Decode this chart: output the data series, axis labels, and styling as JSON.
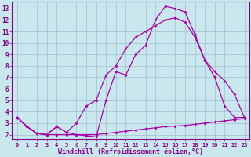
{
  "bg_color": "#c8e8ee",
  "grid_color": "#a0bece",
  "line_color": "#aa00aa",
  "xlabel": "Windchill (Refroidissement éolien,°C)",
  "xlim_min": -0.5,
  "xlim_max": 23.5,
  "ylim_min": 1.6,
  "ylim_max": 13.6,
  "xticks": [
    0,
    1,
    2,
    3,
    4,
    5,
    6,
    7,
    8,
    9,
    10,
    11,
    12,
    13,
    14,
    15,
    16,
    17,
    18,
    19,
    20,
    21,
    22,
    23
  ],
  "yticks": [
    2,
    3,
    4,
    5,
    6,
    7,
    8,
    9,
    10,
    11,
    12,
    13
  ],
  "line1_x": [
    0,
    1,
    2,
    3,
    4,
    5,
    6,
    7,
    8,
    9,
    10,
    11,
    12,
    13,
    14,
    15,
    16,
    17,
    18,
    19,
    20,
    21,
    22,
    23
  ],
  "line1_y": [
    3.5,
    2.7,
    2.1,
    2.0,
    2.0,
    2.0,
    2.0,
    2.0,
    2.0,
    2.1,
    2.2,
    2.3,
    2.4,
    2.5,
    2.6,
    2.7,
    2.75,
    2.8,
    2.9,
    3.0,
    3.1,
    3.2,
    3.3,
    3.4
  ],
  "line2_x": [
    0,
    1,
    2,
    3,
    4,
    5,
    6,
    7,
    8,
    9,
    10,
    11,
    12,
    13,
    14,
    15,
    16,
    17,
    18,
    19,
    20,
    21,
    22,
    23
  ],
  "line2_y": [
    3.5,
    2.7,
    2.1,
    2.0,
    2.7,
    2.2,
    3.0,
    4.5,
    5.0,
    7.2,
    8.0,
    9.5,
    10.5,
    11.0,
    11.5,
    12.0,
    12.2,
    11.8,
    10.5,
    8.5,
    7.5,
    6.7,
    5.5,
    3.5
  ],
  "line3_x": [
    0,
    1,
    2,
    3,
    4,
    5,
    6,
    7,
    8,
    9,
    10,
    11,
    12,
    13,
    14,
    15,
    16,
    17,
    18,
    19,
    20,
    21,
    22,
    23
  ],
  "line3_y": [
    3.5,
    2.7,
    2.1,
    2.0,
    2.7,
    2.2,
    2.0,
    1.9,
    1.8,
    5.0,
    7.5,
    7.2,
    9.0,
    9.8,
    12.0,
    13.2,
    13.0,
    12.7,
    10.7,
    8.5,
    7.0,
    4.5,
    3.5,
    3.5
  ],
  "tick_color": "#880088",
  "tick_fontsize": 5.0,
  "xlabel_fontsize": 6.0,
  "lw": 0.9,
  "ms": 2.0
}
